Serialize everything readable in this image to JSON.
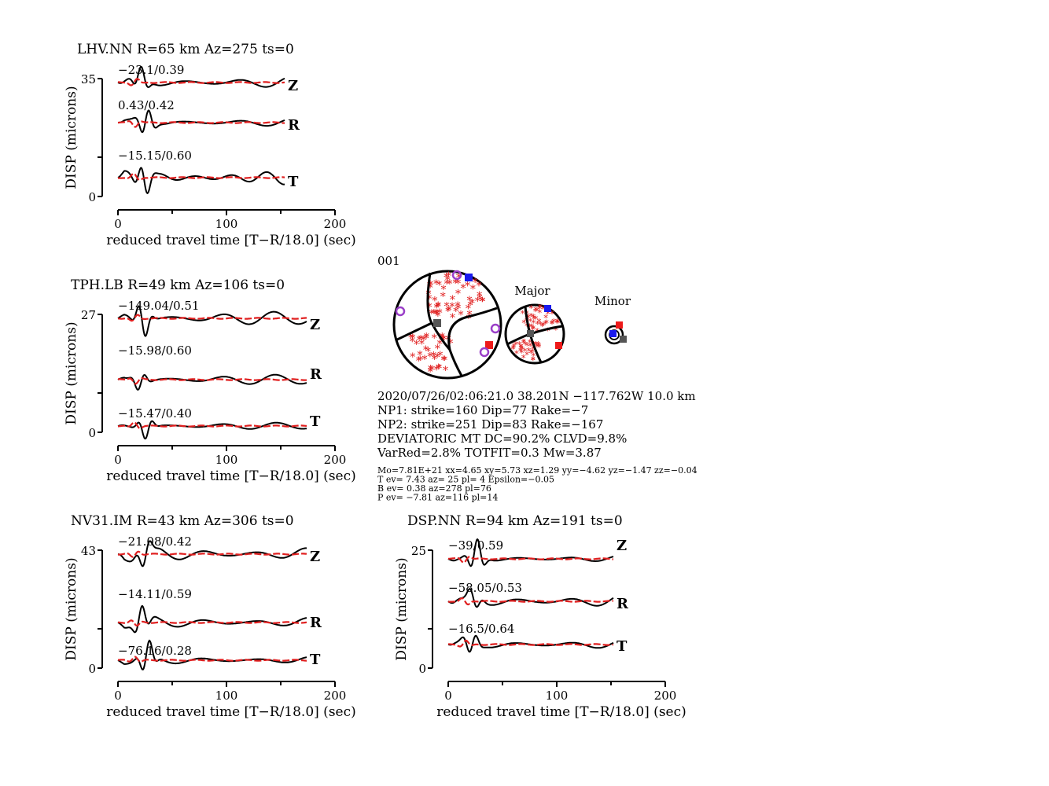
{
  "chart_data": [
    {
      "type": "line",
      "station": "LHV.NN",
      "title": "LHV.NN R=65 km Az=275 ts=0",
      "xlabel": "reduced travel time [T-R/18.0] (sec)",
      "ylabel": "DISP (microns)",
      "xlim": [
        0,
        200
      ],
      "xticks": [
        0,
        100,
        200
      ],
      "ytick_top": "35",
      "ytick_bottom": "0",
      "grid": false,
      "components": [
        {
          "name": "Z",
          "misfit": "-23.1/0.39"
        },
        {
          "name": "R",
          "misfit": "0.43/0.42"
        },
        {
          "name": "T",
          "misfit": "-15.15/0.60"
        }
      ]
    },
    {
      "type": "line",
      "station": "TPH.LB",
      "title": "TPH.LB R=49 km Az=106 ts=0",
      "xlabel": "reduced travel time [T-R/18.0] (sec)",
      "ylabel": "DISP (microns)",
      "xlim": [
        0,
        200
      ],
      "xticks": [
        0,
        100,
        200
      ],
      "ytick_top": "27",
      "ytick_bottom": "0",
      "grid": false,
      "components": [
        {
          "name": "Z",
          "misfit": "-149.04/0.51"
        },
        {
          "name": "R",
          "misfit": "-15.98/0.60"
        },
        {
          "name": "T",
          "misfit": "-15.47/0.40"
        }
      ]
    },
    {
      "type": "line",
      "station": "NV31.IM",
      "title": "NV31.IM R=43 km Az=306 ts=0",
      "xlabel": "reduced travel time [T-R/18.0] (sec)",
      "ylabel": "DISP (microns)",
      "xlim": [
        0,
        200
      ],
      "xticks": [
        0,
        100,
        200
      ],
      "ytick_top": "43",
      "ytick_bottom": "0",
      "grid": false,
      "components": [
        {
          "name": "Z",
          "misfit": "-21.08/0.42"
        },
        {
          "name": "R",
          "misfit": "-14.11/0.59"
        },
        {
          "name": "T",
          "misfit": "-76.16/0.28"
        }
      ]
    },
    {
      "type": "line",
      "station": "DSP.NN",
      "title": "DSP.NN R=94 km Az=191 ts=0",
      "xlabel": "reduced travel time [T-R/18.0] (sec)",
      "ylabel": "DISP (microns)",
      "xlim": [
        0,
        200
      ],
      "xticks": [
        0,
        100,
        200
      ],
      "ytick_top": "25",
      "ytick_bottom": "0",
      "grid": false,
      "components": [
        {
          "name": "Z",
          "misfit": "-39/0.59"
        },
        {
          "name": "R",
          "misfit": "-58.05/0.53"
        },
        {
          "name": "T",
          "misfit": "-16.5/0.64"
        }
      ]
    }
  ],
  "event": {
    "id": "001",
    "major_label": "Major",
    "minor_label": "Minor",
    "lines": [
      "2020/07/26/02:06:21.0 38.201N -117.762W 10.0 km",
      "NP1: strike=160 Dip=77 Rake=-7",
      "NP2: strike=251 Dip=83 Rake=-167",
      "DEVIATORIC MT DC=90.2% CLVD=9.8%",
      "VarRed=2.8% TOTFIT=0.3 Mw=3.87"
    ],
    "small_lines": [
      "Mo=7.81E+21 xx=4.65 xy=5.73 xz=1.29 yy=-4.62 yz=-1.47 zz=-0.04",
      "T ev=  7.43 az= 25 pl= 4 Epsilon=-0.05",
      "B ev=  0.38 az=278 pl=76",
      "P ev= -7.81 az=116 pl=14"
    ]
  },
  "colors": {
    "observed": "#000000",
    "synthetic": "#e02020",
    "misfit_text": "#a83434",
    "t_axis_marker": "#1a1aee",
    "p_axis_marker": "#ee1a1a",
    "b_axis_marker": "#555555",
    "station_marker": "#9a3fc8"
  }
}
